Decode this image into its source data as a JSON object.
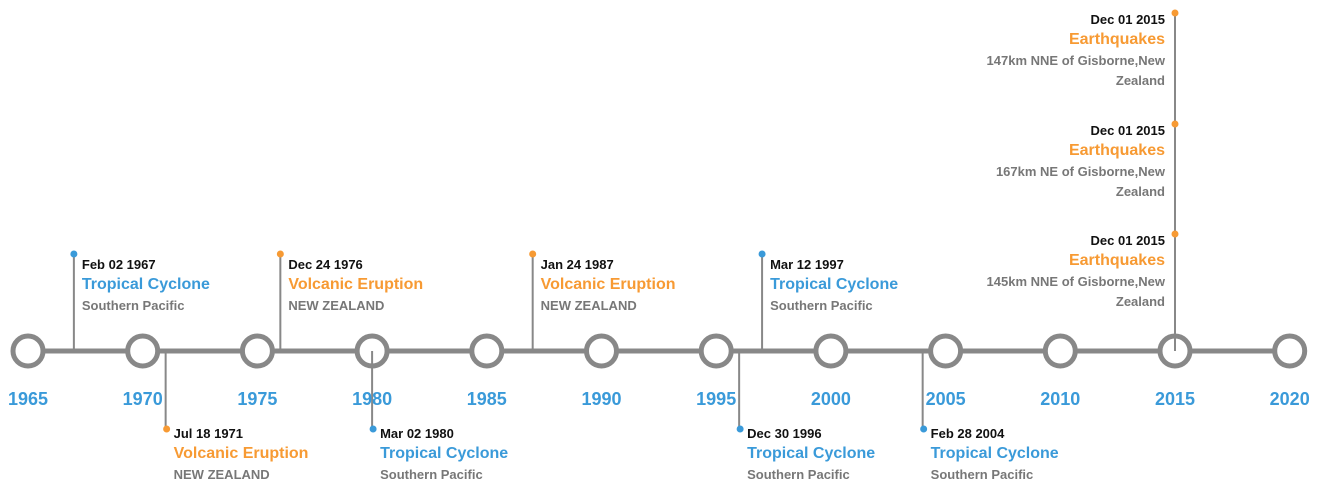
{
  "timeline": {
    "years": [
      "1965",
      "1970",
      "1975",
      "1980",
      "1985",
      "1990",
      "1995",
      "2000",
      "2005",
      "2010",
      "2015",
      "2020"
    ],
    "events": [
      {
        "date": "Feb 02 1967",
        "type": "Tropical Cyclone",
        "location": "Southern Pacific",
        "color": "#3a9ad9"
      },
      {
        "date": "Jul 18 1971",
        "type": "Volcanic Eruption",
        "location": "NEW ZEALAND",
        "color": "#f79a33"
      },
      {
        "date": "Dec 24 1976",
        "type": "Volcanic Eruption",
        "location": "NEW ZEALAND",
        "color": "#f79a33"
      },
      {
        "date": "Mar 02 1980",
        "type": "Tropical Cyclone",
        "location": "Southern Pacific",
        "color": "#3a9ad9"
      },
      {
        "date": "Jan 24 1987",
        "type": "Volcanic Eruption",
        "location": "NEW ZEALAND",
        "color": "#f79a33"
      },
      {
        "date": "Dec 30 1996",
        "type": "Tropical Cyclone",
        "location": "Southern Pacific",
        "color": "#3a9ad9"
      },
      {
        "date": "Mar 12 1997",
        "type": "Tropical Cyclone",
        "location": "Southern Pacific",
        "color": "#3a9ad9"
      },
      {
        "date": "Feb 28 2004",
        "type": "Tropical Cyclone",
        "location": "Southern Pacific",
        "color": "#3a9ad9"
      },
      {
        "date": "Dec 01 2015",
        "type": "Earthquakes",
        "location": "147km NNE of Gisborne,New Zealand",
        "color": "#f79a33"
      },
      {
        "date": "Dec 01 2015",
        "type": "Earthquakes",
        "location": "167km NE of Gisborne,New Zealand",
        "color": "#f79a33"
      },
      {
        "date": "Dec 01 2015",
        "type": "Earthquakes",
        "location": "145km NNE of Gisborne,New Zealand",
        "color": "#f79a33"
      }
    ]
  }
}
